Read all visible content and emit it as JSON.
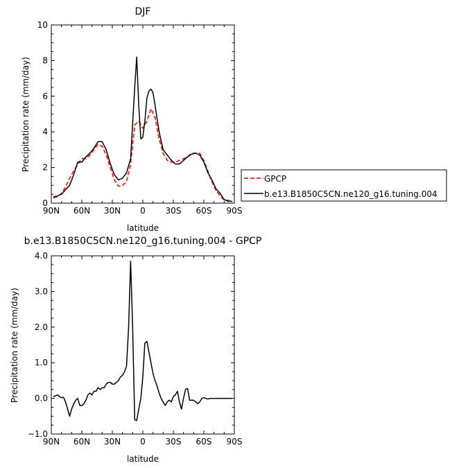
{
  "chart_data": [
    {
      "type": "line",
      "title": "DJF",
      "xlabel": "latitude",
      "ylabel": "Precipitation rate (mm/day)",
      "xlim": [
        90,
        -90
      ],
      "ylim": [
        0,
        10
      ],
      "xticks": [
        90,
        60,
        30,
        0,
        -30,
        -60,
        -90
      ],
      "xtick_labels": [
        "90N",
        "60N",
        "30N",
        "0",
        "30S",
        "60S",
        "90S"
      ],
      "yticks": [
        0,
        2,
        4,
        6,
        8,
        10
      ],
      "ytick_labels": [
        "0",
        "2",
        "4",
        "6",
        "8",
        "10"
      ],
      "legend_placement": "right",
      "series": [
        {
          "name": "GPCP",
          "color": "#e8241c",
          "dash": "dashed",
          "x": [
            88,
            84,
            80,
            76,
            72,
            68,
            64,
            60,
            56,
            52,
            48,
            44,
            40,
            36,
            32,
            28,
            24,
            20,
            16,
            12,
            8,
            4,
            0,
            -4,
            -8,
            -12,
            -16,
            -20,
            -24,
            -28,
            -32,
            -36,
            -40,
            -44,
            -48,
            -52,
            -56,
            -60,
            -64,
            -68,
            -72,
            -76,
            -80,
            -84,
            -88
          ],
          "y": [
            0.3,
            0.35,
            0.55,
            0.9,
            1.4,
            1.8,
            2.2,
            2.5,
            2.5,
            2.7,
            3.0,
            3.3,
            3.2,
            2.7,
            2.0,
            1.3,
            0.95,
            1.0,
            1.2,
            2.2,
            4.4,
            4.6,
            4.2,
            4.6,
            5.3,
            4.8,
            3.6,
            2.8,
            2.4,
            2.3,
            2.3,
            2.4,
            2.5,
            2.6,
            2.8,
            2.8,
            2.8,
            2.4,
            1.8,
            1.2,
            0.7,
            0.4,
            0.2,
            0.15,
            0.1
          ]
        },
        {
          "name": "b.e13.B1850C5CN.ne120_g16.tuning.004",
          "color": "#000000",
          "dash": "solid",
          "x": [
            88,
            84,
            80,
            76,
            72,
            68,
            64,
            60,
            56,
            52,
            48,
            44,
            40,
            36,
            32,
            28,
            24,
            20,
            16,
            12,
            8,
            6,
            4,
            2,
            0,
            -2,
            -4,
            -6,
            -8,
            -10,
            -12,
            -16,
            -20,
            -24,
            -28,
            -32,
            -36,
            -40,
            -44,
            -48,
            -52,
            -56,
            -60,
            -64,
            -68,
            -72,
            -76,
            -80,
            -84,
            -88
          ],
          "y": [
            0.35,
            0.4,
            0.5,
            0.75,
            1.0,
            1.6,
            2.3,
            2.3,
            2.6,
            2.8,
            3.1,
            3.45,
            3.45,
            3.0,
            2.2,
            1.6,
            1.3,
            1.4,
            1.7,
            2.5,
            6.5,
            8.2,
            5.5,
            3.6,
            3.7,
            4.6,
            5.9,
            6.3,
            6.4,
            6.2,
            5.5,
            4.0,
            3.0,
            2.7,
            2.4,
            2.2,
            2.2,
            2.4,
            2.6,
            2.75,
            2.8,
            2.7,
            2.3,
            1.7,
            1.3,
            0.8,
            0.55,
            0.2,
            0.1,
            0.1
          ]
        }
      ]
    },
    {
      "type": "line",
      "title": "b.e13.B1850C5CN.ne120_g16.tuning.004 - GPCP",
      "xlabel": "latitude",
      "ylabel": "Precipitation rate (mm/day)",
      "xlim": [
        90,
        -90
      ],
      "ylim": [
        -1.0,
        4.0
      ],
      "xticks": [
        90,
        60,
        30,
        0,
        -30,
        -60,
        -90
      ],
      "xtick_labels": [
        "90N",
        "60N",
        "30N",
        "0",
        "30S",
        "60S",
        "90S"
      ],
      "yticks": [
        -1.0,
        0.0,
        1.0,
        2.0,
        3.0,
        4.0
      ],
      "ytick_labels": [
        "−1.0",
        "0.0",
        "1.0",
        "2.0",
        "3.0",
        "4.0"
      ],
      "series": [
        {
          "color": "#000000",
          "dash": "solid",
          "x": [
            88,
            86,
            84,
            82,
            80,
            78,
            76,
            74,
            72,
            70,
            68,
            66,
            64,
            62,
            60,
            58,
            56,
            54,
            52,
            50,
            48,
            46,
            44,
            42,
            40,
            38,
            36,
            34,
            32,
            30,
            28,
            26,
            24,
            22,
            20,
            18,
            16,
            14,
            12,
            10,
            8,
            6,
            4,
            2,
            0,
            -2,
            -4,
            -6,
            -8,
            -10,
            -12,
            -14,
            -16,
            -18,
            -20,
            -22,
            -24,
            -26,
            -28,
            -30,
            -32,
            -34,
            -36,
            -38,
            -40,
            -42,
            -44,
            -46,
            -48,
            -50,
            -52,
            -54,
            -56,
            -58,
            -60,
            -62,
            -64,
            -66,
            -68,
            -70,
            -72,
            -74,
            -76,
            -78,
            -80,
            -82,
            -84,
            -86,
            -88
          ],
          "y": [
            0.05,
            0.07,
            0.1,
            0.05,
            0.02,
            0.03,
            -0.1,
            -0.3,
            -0.5,
            -0.3,
            -0.15,
            -0.05,
            0.0,
            -0.2,
            -0.2,
            -0.15,
            -0.05,
            0.1,
            0.15,
            0.1,
            0.2,
            0.2,
            0.3,
            0.25,
            0.3,
            0.3,
            0.4,
            0.45,
            0.45,
            0.4,
            0.4,
            0.45,
            0.5,
            0.6,
            0.65,
            0.75,
            0.9,
            2.0,
            3.85,
            2.0,
            -0.6,
            -0.62,
            -0.3,
            0.0,
            0.6,
            1.55,
            1.6,
            1.3,
            1.0,
            0.7,
            0.5,
            0.35,
            0.15,
            0.0,
            -0.1,
            -0.2,
            -0.1,
            -0.05,
            -0.1,
            0.05,
            0.1,
            0.2,
            -0.1,
            -0.3,
            0.0,
            0.25,
            0.28,
            -0.05,
            -0.05,
            -0.05,
            -0.1,
            -0.15,
            -0.1,
            0.0,
            0.02,
            0.0,
            -0.02,
            0.0,
            0.0,
            0.0,
            0.0,
            0.0,
            0.0,
            0.0,
            0.0,
            0.0,
            0.0,
            0.0,
            0.0
          ]
        }
      ]
    }
  ]
}
